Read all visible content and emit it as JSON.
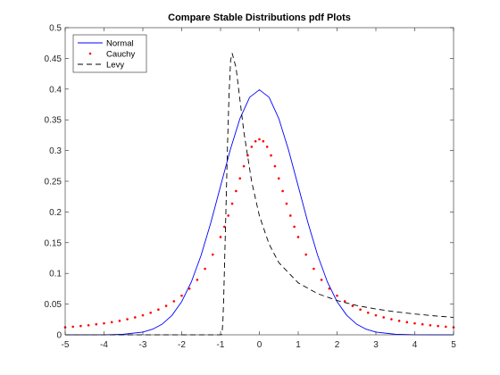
{
  "chart_data": {
    "type": "line",
    "title": "Compare Stable Distributions pdf Plots",
    "xlabel": "",
    "ylabel": "",
    "xlim": [
      -5,
      5
    ],
    "ylim": [
      0,
      0.5
    ],
    "xticks": [
      -5,
      -4,
      -3,
      -2,
      -1,
      0,
      1,
      2,
      3,
      4,
      5
    ],
    "yticks": [
      0,
      0.05,
      0.1,
      0.15,
      0.2,
      0.25,
      0.3,
      0.35,
      0.4,
      0.45,
      0.5
    ],
    "xtick_labels": [
      "-5",
      "-4",
      "-3",
      "-2",
      "-1",
      "0",
      "1",
      "2",
      "3",
      "4",
      "5"
    ],
    "ytick_labels": [
      "0",
      "0.05",
      "0.1",
      "0.15",
      "0.2",
      "0.25",
      "0.3",
      "0.35",
      "0.4",
      "0.45",
      "0.5"
    ],
    "grid": false,
    "legend_position": "top-left",
    "series": [
      {
        "name": "Normal",
        "style": "solid",
        "color": "#0000ff",
        "x": [
          -5,
          -4.5,
          -4,
          -3.5,
          -3,
          -2.75,
          -2.5,
          -2.25,
          -2,
          -1.75,
          -1.5,
          -1.25,
          -1,
          -0.75,
          -0.5,
          -0.25,
          0,
          0.25,
          0.5,
          0.75,
          1,
          1.25,
          1.5,
          1.75,
          2,
          2.25,
          2.5,
          2.75,
          3,
          3.5,
          4,
          4.5,
          5
        ],
        "y": [
          0,
          0,
          0.0001,
          0.0009,
          0.0044,
          0.0091,
          0.0175,
          0.0317,
          0.054,
          0.0863,
          0.1295,
          0.1826,
          0.242,
          0.3011,
          0.3521,
          0.3867,
          0.3989,
          0.3867,
          0.3521,
          0.3011,
          0.242,
          0.1826,
          0.1295,
          0.0863,
          0.054,
          0.0317,
          0.0175,
          0.0091,
          0.0044,
          0.0009,
          0.0001,
          0,
          0
        ]
      },
      {
        "name": "Cauchy",
        "style": "dotted",
        "color": "#ff0000",
        "x": [
          -5,
          -4.8,
          -4.6,
          -4.4,
          -4.2,
          -4,
          -3.8,
          -3.6,
          -3.4,
          -3.2,
          -3,
          -2.8,
          -2.6,
          -2.4,
          -2.2,
          -2,
          -1.8,
          -1.6,
          -1.4,
          -1.2,
          -1,
          -0.9,
          -0.8,
          -0.7,
          -0.6,
          -0.5,
          -0.4,
          -0.3,
          -0.2,
          -0.1,
          0,
          0.1,
          0.2,
          0.3,
          0.4,
          0.5,
          0.6,
          0.7,
          0.8,
          0.9,
          1,
          1.2,
          1.4,
          1.6,
          1.8,
          2,
          2.2,
          2.4,
          2.6,
          2.8,
          3,
          3.2,
          3.4,
          3.6,
          3.8,
          4,
          4.2,
          4.4,
          4.6,
          4.8,
          5
        ],
        "y": [
          0.0122,
          0.0132,
          0.0143,
          0.0156,
          0.0171,
          0.0187,
          0.0206,
          0.0228,
          0.0254,
          0.0284,
          0.0318,
          0.0359,
          0.0411,
          0.0471,
          0.0546,
          0.0637,
          0.0752,
          0.0895,
          0.1075,
          0.1306,
          0.1592,
          0.1759,
          0.1941,
          0.2135,
          0.2341,
          0.2546,
          0.2745,
          0.292,
          0.3061,
          0.3151,
          0.3183,
          0.3151,
          0.3061,
          0.292,
          0.2745,
          0.2546,
          0.2341,
          0.2135,
          0.1941,
          0.1759,
          0.1592,
          0.1306,
          0.1075,
          0.0895,
          0.0752,
          0.0637,
          0.0546,
          0.0471,
          0.0411,
          0.0359,
          0.0318,
          0.0284,
          0.0254,
          0.0228,
          0.0206,
          0.0187,
          0.0171,
          0.0156,
          0.0143,
          0.0132,
          0.0122
        ]
      },
      {
        "name": "Levy",
        "style": "dashed",
        "color": "#000000",
        "x": [
          -5,
          -1,
          -0.98,
          -0.96,
          -0.94,
          -0.92,
          -0.9,
          -0.86,
          -0.82,
          -0.78,
          -0.74,
          -0.7,
          -0.6,
          -0.5,
          -0.4,
          -0.2,
          0,
          0.25,
          0.5,
          1,
          1.5,
          2,
          2.5,
          3,
          3.5,
          4,
          4.5,
          5
        ],
        "y": [
          0,
          0,
          0.0001,
          0.0036,
          0.0211,
          0.0565,
          0.1061,
          0.2064,
          0.3102,
          0.3929,
          0.4472,
          0.4583,
          0.4346,
          0.3824,
          0.3306,
          0.2497,
          0.1938,
          0.1476,
          0.1176,
          0.0846,
          0.067,
          0.0558,
          0.0478,
          0.042,
          0.0375,
          0.0339,
          0.0309,
          0.0284
        ]
      }
    ]
  }
}
